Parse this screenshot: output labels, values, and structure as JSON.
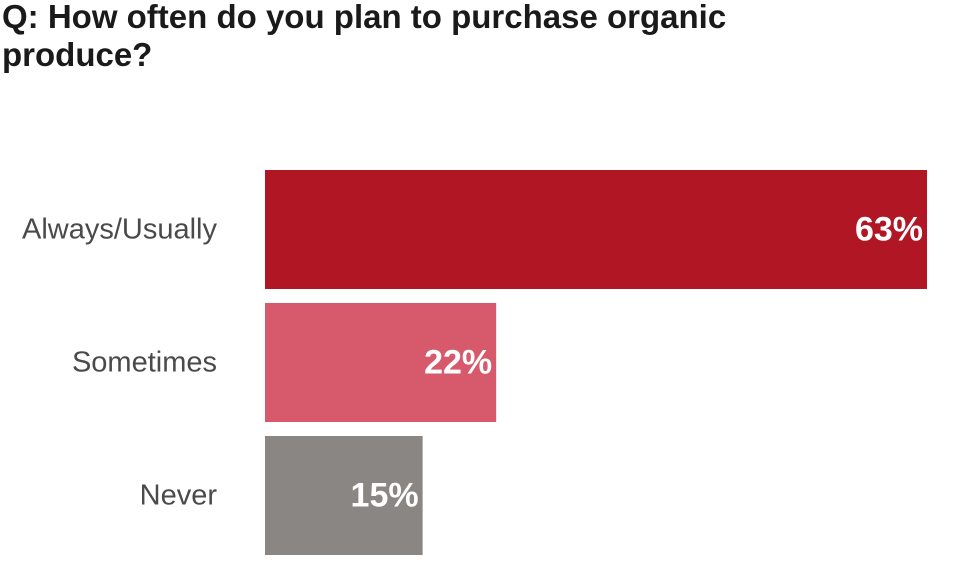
{
  "chart_data": {
    "type": "bar",
    "orientation": "horizontal",
    "title": "Q: How often do you plan to purchase organic produce?",
    "categories": [
      "Always/Usually",
      "Sometimes",
      "Never"
    ],
    "values": [
      63,
      22,
      15
    ],
    "value_labels": [
      "63%",
      "22%",
      "15%"
    ],
    "colors": [
      "#b01623",
      "#d65a6b",
      "#8a8683"
    ],
    "xlim": [
      0,
      63
    ],
    "grid": false,
    "legend": "none"
  }
}
